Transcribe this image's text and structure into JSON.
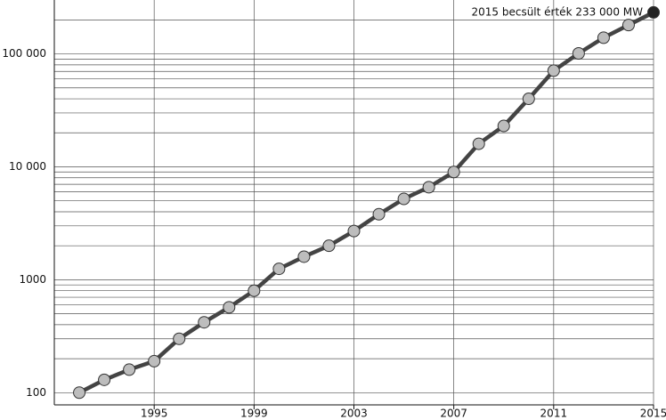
{
  "chart_data": {
    "type": "line",
    "annotation": "2015 becsült érték 233 000 MW",
    "x": [
      1992,
      1993,
      1994,
      1995,
      1996,
      1997,
      1998,
      1999,
      2000,
      2001,
      2002,
      2003,
      2004,
      2005,
      2006,
      2007,
      2008,
      2009,
      2010,
      2011,
      2012,
      2013,
      2014,
      2015
    ],
    "series": [
      {
        "color": "#444444",
        "marker_color": "#bdbdbd",
        "highlight_color": "#222222",
        "values": [
          100,
          130,
          160,
          190,
          300,
          420,
          570,
          800,
          1250,
          1600,
          2000,
          2700,
          3800,
          5200,
          6600,
          9000,
          16000,
          23000,
          40000,
          71000,
          101000,
          139000,
          180000,
          233000
        ]
      }
    ],
    "xlim": [
      1991,
      2015
    ],
    "xticks": [
      1995,
      1999,
      2003,
      2007,
      2011,
      2015
    ],
    "ylim": [
      78,
      300000
    ],
    "log_y": true,
    "yticks": [
      100,
      1000,
      {
        "value": 10000,
        "label": "10 000"
      },
      {
        "value": 100000,
        "label": "100 000"
      }
    ],
    "ygrid_minor": [
      200,
      300,
      400,
      500,
      600,
      700,
      800,
      900,
      2000,
      3000,
      4000,
      5000,
      6000,
      7000,
      8000,
      9000,
      20000,
      30000,
      40000,
      50000,
      60000,
      70000,
      80000,
      90000,
      200000
    ],
    "grid": true
  }
}
